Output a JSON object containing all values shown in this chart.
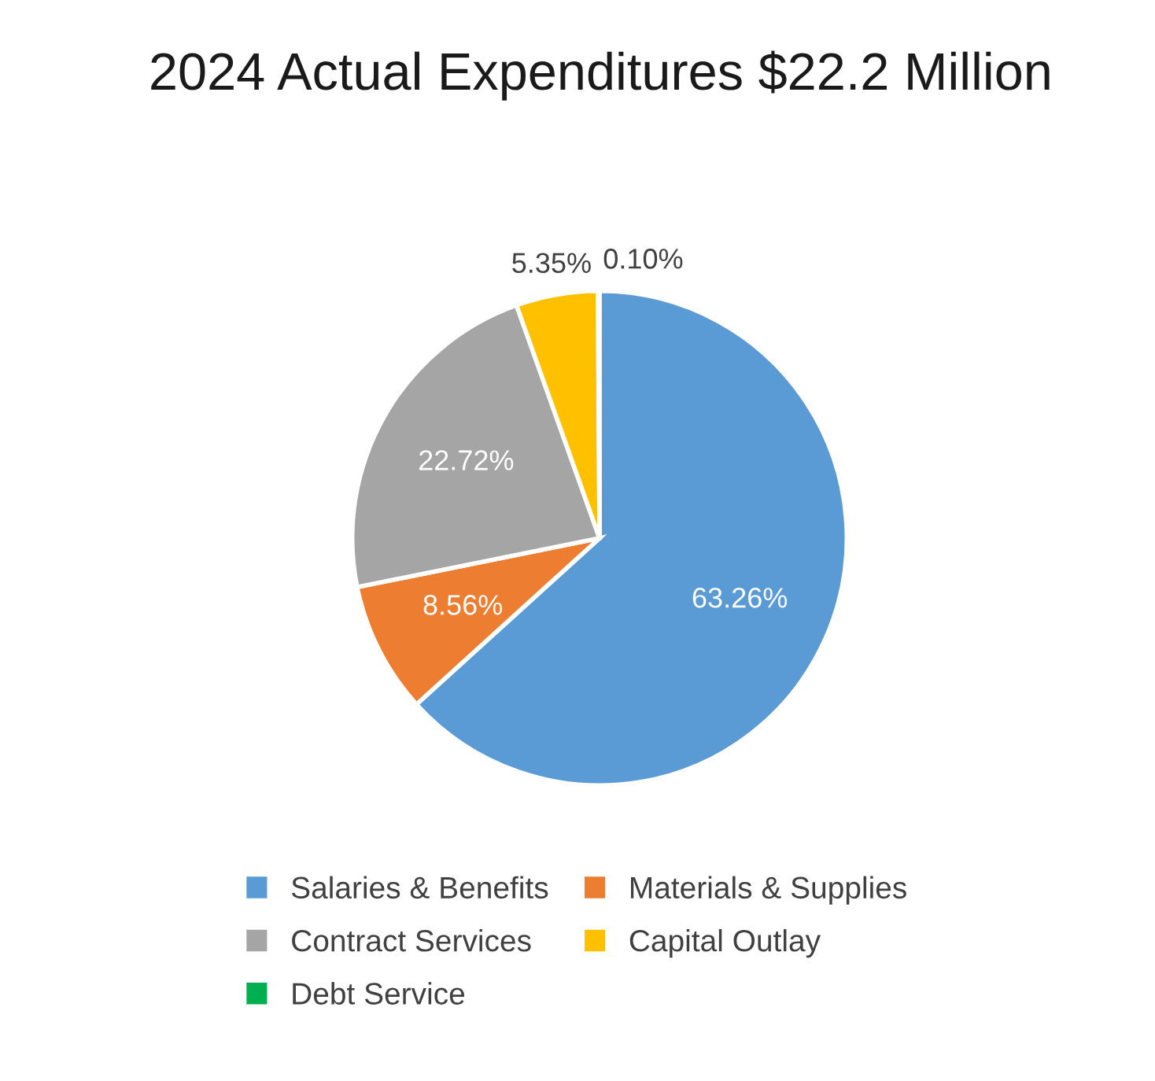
{
  "chart_data": {
    "type": "pie",
    "title": "2024 Actual Expenditures $22.2 Million",
    "categories": [
      "Salaries & Benefits",
      "Materials & Supplies",
      "Contract Services",
      "Capital Outlay",
      "Debt Service"
    ],
    "values": [
      63.26,
      8.56,
      22.72,
      5.35,
      0.1
    ],
    "colors": [
      "#5b9bd5",
      "#ed7d31",
      "#a5a5a5",
      "#ffc000",
      "#00b050"
    ],
    "value_labels": [
      "63.26%",
      "8.56%",
      "22.72%",
      "5.35%",
      "0.10%"
    ],
    "legend": "bottom"
  }
}
